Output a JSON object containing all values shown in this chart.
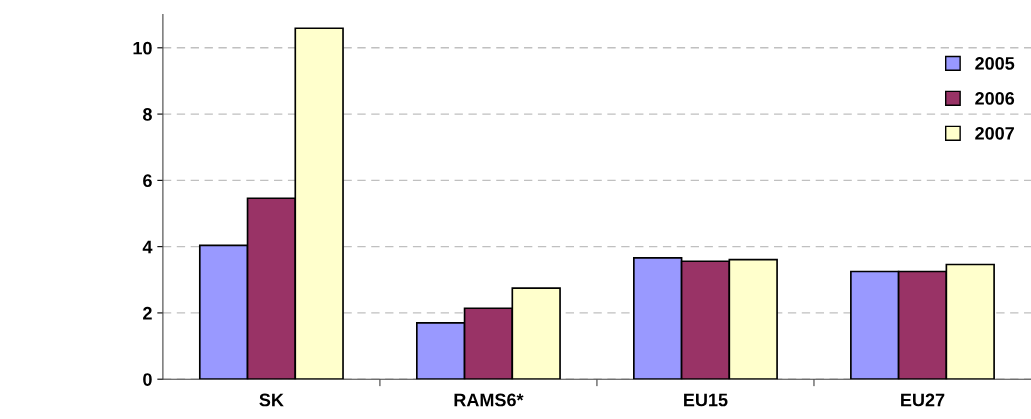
{
  "chart_data": {
    "type": "bar",
    "categories": [
      "SK",
      "RAMS6*",
      "EU15",
      "EU27"
    ],
    "series": [
      {
        "name": "2005",
        "color": "#9999ff",
        "values": [
          4.04,
          1.7,
          3.66,
          3.25
        ]
      },
      {
        "name": "2006",
        "color": "#993366",
        "values": [
          5.46,
          2.14,
          3.56,
          3.25
        ]
      },
      {
        "name": "2007",
        "color": "#ffffcc",
        "values": [
          10.59,
          2.75,
          3.61,
          3.46
        ]
      }
    ],
    "ylim": [
      0,
      11
    ],
    "yticks": [
      0,
      2,
      4,
      6,
      8,
      10
    ],
    "grid": "y",
    "legend": "top right"
  }
}
